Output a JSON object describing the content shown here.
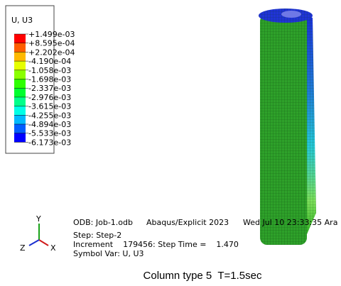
{
  "legend": {
    "title": "U, U3",
    "entries": [
      "+1.499e-03",
      "+8.595e-04",
      "+2.202e-04",
      "-4.190e-04",
      "-1.058e-03",
      "-1.698e-03",
      "-2.337e-03",
      "-2.976e-03",
      "-3.615e-03",
      "-4.255e-03",
      "-4.894e-03",
      "-5.533e-03",
      "-6.173e-03"
    ],
    "colors": [
      "#ff0000",
      "#ff5d00",
      "#ffb900",
      "#e6ff00",
      "#8aff00",
      "#2eff00",
      "#00ff2e",
      "#00ff8a",
      "#00ffe6",
      "#00b9ff",
      "#005dff",
      "#0000ff"
    ]
  },
  "info": {
    "odb": "ODB: Job-1.odb",
    "software": "Abaqus/Explicit 2023",
    "date": "Wed Jul 10 23:33:35 Ara",
    "step": "Step: Step-2",
    "increment": "Increment    179456: Step Time =    1.470",
    "symbol": "Symbol Var: U, U3"
  },
  "triad": {
    "x": "X",
    "y": "Y",
    "z": "Z"
  },
  "caption": "Column type 5  T=1.5sec"
}
